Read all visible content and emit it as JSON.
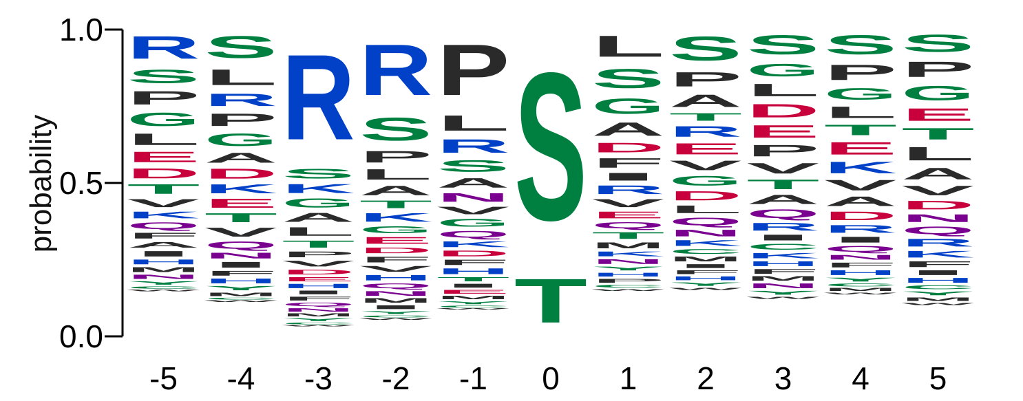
{
  "chart_data": {
    "type": "sequence-logo",
    "ylabel": "probability",
    "ylim": [
      0,
      1
    ],
    "yticks": [
      {
        "value": 0.0,
        "label": "0.0"
      },
      {
        "value": 0.5,
        "label": "0.5"
      },
      {
        "value": 1.0,
        "label": "1.0"
      }
    ],
    "colors": {
      "R": "#0041c8",
      "K": "#0041c8",
      "H": "#0041c8",
      "S": "#008040",
      "G": "#008040",
      "T": "#008040",
      "C": "#008040",
      "Y": "#008040",
      "P": "#2a2a2a",
      "L": "#2a2a2a",
      "A": "#2a2a2a",
      "V": "#2a2a2a",
      "I": "#2a2a2a",
      "M": "#2a2a2a",
      "F": "#2a2a2a",
      "W": "#2a2a2a",
      "D": "#c8003c",
      "E": "#c8003c",
      "Q": "#7a0090",
      "N": "#7a0090"
    },
    "positions": [
      {
        "label": "-5",
        "letters": [
          {
            "letter": "R",
            "p": 0.118
          },
          {
            "letter": "S",
            "p": 0.07
          },
          {
            "letter": "P",
            "p": 0.07
          },
          {
            "letter": "G",
            "p": 0.07
          },
          {
            "letter": "L",
            "p": 0.06
          },
          {
            "letter": "E",
            "p": 0.055
          },
          {
            "letter": "D",
            "p": 0.052
          },
          {
            "letter": "T",
            "p": 0.05
          },
          {
            "letter": "V",
            "p": 0.042
          },
          {
            "letter": "K",
            "p": 0.035
          },
          {
            "letter": "Q",
            "p": 0.035
          },
          {
            "letter": "F",
            "p": 0.03
          },
          {
            "letter": "A",
            "p": 0.03
          },
          {
            "letter": "I",
            "p": 0.028
          },
          {
            "letter": "H",
            "p": 0.025
          },
          {
            "letter": "M",
            "p": 0.025
          },
          {
            "letter": "N",
            "p": 0.022
          },
          {
            "letter": "Y",
            "p": 0.018
          },
          {
            "letter": "C",
            "p": 0.012
          },
          {
            "letter": "W",
            "p": 0.008
          }
        ]
      },
      {
        "label": "-4",
        "letters": [
          {
            "letter": "S",
            "p": 0.115
          },
          {
            "letter": "L",
            "p": 0.082
          },
          {
            "letter": "R",
            "p": 0.065
          },
          {
            "letter": "P",
            "p": 0.065
          },
          {
            "letter": "G",
            "p": 0.065
          },
          {
            "letter": "A",
            "p": 0.052
          },
          {
            "letter": "D",
            "p": 0.052
          },
          {
            "letter": "K",
            "p": 0.047
          },
          {
            "letter": "E",
            "p": 0.047
          },
          {
            "letter": "T",
            "p": 0.047
          },
          {
            "letter": "V",
            "p": 0.047
          },
          {
            "letter": "Q",
            "p": 0.038
          },
          {
            "letter": "N",
            "p": 0.03
          },
          {
            "letter": "I",
            "p": 0.03
          },
          {
            "letter": "F",
            "p": 0.025
          },
          {
            "letter": "H",
            "p": 0.025
          },
          {
            "letter": "Y",
            "p": 0.022
          },
          {
            "letter": "M",
            "p": 0.018
          },
          {
            "letter": "C",
            "p": 0.01
          },
          {
            "letter": "W",
            "p": 0.008
          }
        ]
      },
      {
        "label": "-3",
        "letters": [
          {
            "letter": "R",
            "p": 0.445
          },
          {
            "letter": "S",
            "p": 0.05
          },
          {
            "letter": "K",
            "p": 0.047
          },
          {
            "letter": "G",
            "p": 0.047
          },
          {
            "letter": "A",
            "p": 0.047
          },
          {
            "letter": "L",
            "p": 0.045
          },
          {
            "letter": "T",
            "p": 0.037
          },
          {
            "letter": "P",
            "p": 0.03
          },
          {
            "letter": "V",
            "p": 0.03
          },
          {
            "letter": "D",
            "p": 0.025
          },
          {
            "letter": "E",
            "p": 0.022
          },
          {
            "letter": "H",
            "p": 0.022
          },
          {
            "letter": "I",
            "p": 0.02
          },
          {
            "letter": "F",
            "p": 0.02
          },
          {
            "letter": "Q",
            "p": 0.018
          },
          {
            "letter": "N",
            "p": 0.018
          },
          {
            "letter": "M",
            "p": 0.015
          },
          {
            "letter": "Y",
            "p": 0.015
          },
          {
            "letter": "C",
            "p": 0.01
          },
          {
            "letter": "W",
            "p": 0.006
          }
        ]
      },
      {
        "label": "-2",
        "letters": [
          {
            "letter": "R",
            "p": 0.265
          },
          {
            "letter": "S",
            "p": 0.12
          },
          {
            "letter": "P",
            "p": 0.06
          },
          {
            "letter": "L",
            "p": 0.055
          },
          {
            "letter": "A",
            "p": 0.05
          },
          {
            "letter": "T",
            "p": 0.04
          },
          {
            "letter": "K",
            "p": 0.045
          },
          {
            "letter": "G",
            "p": 0.035
          },
          {
            "letter": "E",
            "p": 0.035
          },
          {
            "letter": "D",
            "p": 0.03
          },
          {
            "letter": "F",
            "p": 0.03
          },
          {
            "letter": "V",
            "p": 0.03
          },
          {
            "letter": "H",
            "p": 0.028
          },
          {
            "letter": "Q",
            "p": 0.025
          },
          {
            "letter": "N",
            "p": 0.025
          },
          {
            "letter": "M",
            "p": 0.022
          },
          {
            "letter": "I",
            "p": 0.02
          },
          {
            "letter": "Y",
            "p": 0.015
          },
          {
            "letter": "C",
            "p": 0.01
          },
          {
            "letter": "W",
            "p": 0.008
          }
        ]
      },
      {
        "label": "-1",
        "letters": [
          {
            "letter": "P",
            "p": 0.265
          },
          {
            "letter": "L",
            "p": 0.08
          },
          {
            "letter": "R",
            "p": 0.07
          },
          {
            "letter": "S",
            "p": 0.06
          },
          {
            "letter": "A",
            "p": 0.05
          },
          {
            "letter": "N",
            "p": 0.045
          },
          {
            "letter": "V",
            "p": 0.04
          },
          {
            "letter": "G",
            "p": 0.04
          },
          {
            "letter": "Q",
            "p": 0.035
          },
          {
            "letter": "K",
            "p": 0.03
          },
          {
            "letter": "D",
            "p": 0.03
          },
          {
            "letter": "F",
            "p": 0.028
          },
          {
            "letter": "H",
            "p": 0.03
          },
          {
            "letter": "T",
            "p": 0.022
          },
          {
            "letter": "I",
            "p": 0.02
          },
          {
            "letter": "E",
            "p": 0.02
          },
          {
            "letter": "M",
            "p": 0.018
          },
          {
            "letter": "Y",
            "p": 0.015
          },
          {
            "letter": "C",
            "p": 0.01
          },
          {
            "letter": "W",
            "p": 0.006
          }
        ]
      },
      {
        "label": "0",
        "letters": [
          {
            "letter": "S",
            "p": 0.77
          },
          {
            "letter": "T",
            "p": 0.23
          }
        ]
      },
      {
        "label": "1",
        "letters": [
          {
            "letter": "L",
            "p": 0.11
          },
          {
            "letter": "S",
            "p": 0.1
          },
          {
            "letter": "G",
            "p": 0.08
          },
          {
            "letter": "A",
            "p": 0.07
          },
          {
            "letter": "D",
            "p": 0.05
          },
          {
            "letter": "F",
            "p": 0.05
          },
          {
            "letter": "I",
            "p": 0.04
          },
          {
            "letter": "R",
            "p": 0.045
          },
          {
            "letter": "V",
            "p": 0.042
          },
          {
            "letter": "E",
            "p": 0.035
          },
          {
            "letter": "Q",
            "p": 0.032
          },
          {
            "letter": "T",
            "p": 0.035
          },
          {
            "letter": "M",
            "p": 0.03
          },
          {
            "letter": "K",
            "p": 0.025
          },
          {
            "letter": "N",
            "p": 0.025
          },
          {
            "letter": "Y",
            "p": 0.02
          },
          {
            "letter": "H",
            "p": 0.02
          },
          {
            "letter": "P",
            "p": 0.02
          },
          {
            "letter": "C",
            "p": 0.015
          },
          {
            "letter": "W",
            "p": 0.01
          }
        ]
      },
      {
        "label": "2",
        "letters": [
          {
            "letter": "S",
            "p": 0.125
          },
          {
            "letter": "P",
            "p": 0.075
          },
          {
            "letter": "A",
            "p": 0.065
          },
          {
            "letter": "T",
            "p": 0.04
          },
          {
            "letter": "R",
            "p": 0.055
          },
          {
            "letter": "E",
            "p": 0.058
          },
          {
            "letter": "V",
            "p": 0.05
          },
          {
            "letter": "G",
            "p": 0.05
          },
          {
            "letter": "D",
            "p": 0.048
          },
          {
            "letter": "L",
            "p": 0.04
          },
          {
            "letter": "Q",
            "p": 0.04
          },
          {
            "letter": "N",
            "p": 0.035
          },
          {
            "letter": "K",
            "p": 0.03
          },
          {
            "letter": "C",
            "p": 0.025
          },
          {
            "letter": "M",
            "p": 0.025
          },
          {
            "letter": "I",
            "p": 0.02
          },
          {
            "letter": "F",
            "p": 0.02
          },
          {
            "letter": "H",
            "p": 0.02
          },
          {
            "letter": "Y",
            "p": 0.018
          },
          {
            "letter": "W",
            "p": 0.012
          }
        ]
      },
      {
        "label": "3",
        "letters": [
          {
            "letter": "S",
            "p": 0.1
          },
          {
            "letter": "G",
            "p": 0.065
          },
          {
            "letter": "L",
            "p": 0.065
          },
          {
            "letter": "D",
            "p": 0.07
          },
          {
            "letter": "E",
            "p": 0.065
          },
          {
            "letter": "P",
            "p": 0.06
          },
          {
            "letter": "V",
            "p": 0.055
          },
          {
            "letter": "T",
            "p": 0.05
          },
          {
            "letter": "A",
            "p": 0.048
          },
          {
            "letter": "Q",
            "p": 0.045
          },
          {
            "letter": "R",
            "p": 0.04
          },
          {
            "letter": "I",
            "p": 0.03
          },
          {
            "letter": "C",
            "p": 0.03
          },
          {
            "letter": "K",
            "p": 0.028
          },
          {
            "letter": "H",
            "p": 0.025
          },
          {
            "letter": "F",
            "p": 0.025
          },
          {
            "letter": "M",
            "p": 0.022
          },
          {
            "letter": "N",
            "p": 0.025
          },
          {
            "letter": "Y",
            "p": 0.02
          },
          {
            "letter": "W",
            "p": 0.012
          }
        ]
      },
      {
        "label": "4",
        "letters": [
          {
            "letter": "S",
            "p": 0.1
          },
          {
            "letter": "P",
            "p": 0.08
          },
          {
            "letter": "G",
            "p": 0.06
          },
          {
            "letter": "L",
            "p": 0.06
          },
          {
            "letter": "T",
            "p": 0.055
          },
          {
            "letter": "E",
            "p": 0.065
          },
          {
            "letter": "K",
            "p": 0.06
          },
          {
            "letter": "V",
            "p": 0.055
          },
          {
            "letter": "A",
            "p": 0.05
          },
          {
            "letter": "D",
            "p": 0.045
          },
          {
            "letter": "R",
            "p": 0.04
          },
          {
            "letter": "I",
            "p": 0.03
          },
          {
            "letter": "Q",
            "p": 0.03
          },
          {
            "letter": "N",
            "p": 0.025
          },
          {
            "letter": "F",
            "p": 0.025
          },
          {
            "letter": "H",
            "p": 0.025
          },
          {
            "letter": "Y",
            "p": 0.02
          },
          {
            "letter": "C",
            "p": 0.015
          },
          {
            "letter": "M",
            "p": 0.015
          },
          {
            "letter": "W",
            "p": 0.01
          }
        ]
      },
      {
        "label": "5",
        "letters": [
          {
            "letter": "S",
            "p": 0.09
          },
          {
            "letter": "P",
            "p": 0.08
          },
          {
            "letter": "G",
            "p": 0.075
          },
          {
            "letter": "E",
            "p": 0.065
          },
          {
            "letter": "T",
            "p": 0.06
          },
          {
            "letter": "L",
            "p": 0.07
          },
          {
            "letter": "A",
            "p": 0.06
          },
          {
            "letter": "V",
            "p": 0.05
          },
          {
            "letter": "D",
            "p": 0.045
          },
          {
            "letter": "N",
            "p": 0.04
          },
          {
            "letter": "Q",
            "p": 0.04
          },
          {
            "letter": "R",
            "p": 0.04
          },
          {
            "letter": "K",
            "p": 0.035
          },
          {
            "letter": "F",
            "p": 0.03
          },
          {
            "letter": "I",
            "p": 0.025
          },
          {
            "letter": "H",
            "p": 0.025
          },
          {
            "letter": "C",
            "p": 0.02
          },
          {
            "letter": "Y",
            "p": 0.02
          },
          {
            "letter": "M",
            "p": 0.018
          },
          {
            "letter": "W",
            "p": 0.012
          }
        ]
      }
    ]
  }
}
